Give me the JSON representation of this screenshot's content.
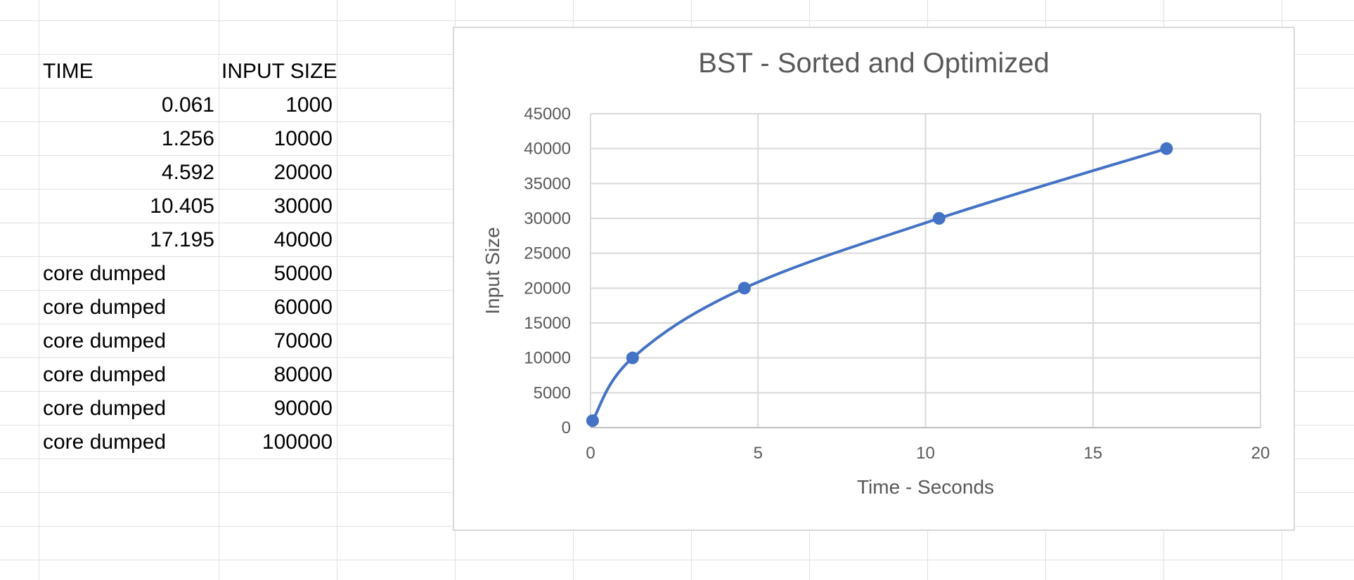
{
  "sheet": {
    "headers": {
      "time": "TIME",
      "input_size": "INPUT SIZE"
    },
    "rows": [
      {
        "time": "0.061",
        "input_size": "1000",
        "time_align": "right"
      },
      {
        "time": "1.256",
        "input_size": "10000",
        "time_align": "right"
      },
      {
        "time": "4.592",
        "input_size": "20000",
        "time_align": "right"
      },
      {
        "time": "10.405",
        "input_size": "30000",
        "time_align": "right"
      },
      {
        "time": "17.195",
        "input_size": "40000",
        "time_align": "right"
      },
      {
        "time": "core dumped",
        "input_size": "50000",
        "time_align": "left"
      },
      {
        "time": "core dumped",
        "input_size": "60000",
        "time_align": "left"
      },
      {
        "time": "core dumped",
        "input_size": "70000",
        "time_align": "left"
      },
      {
        "time": "core dumped",
        "input_size": "80000",
        "time_align": "left"
      },
      {
        "time": "core dumped",
        "input_size": "90000",
        "time_align": "left"
      },
      {
        "time": "core dumped",
        "input_size": "100000",
        "time_align": "left"
      }
    ]
  },
  "chart_data": {
    "type": "scatter",
    "title": "BST - Sorted and Optimized",
    "xlabel": "Time - Seconds",
    "ylabel": "Input Size",
    "xlim": [
      0,
      20
    ],
    "ylim": [
      0,
      45000
    ],
    "xticks": [
      0,
      5,
      10,
      15,
      20
    ],
    "yticks": [
      0,
      5000,
      10000,
      15000,
      20000,
      25000,
      30000,
      35000,
      40000,
      45000
    ],
    "grid": true,
    "smooth_line": true,
    "series": [
      {
        "x": [
          0.061,
          1.256,
          4.592,
          10.405,
          17.195
        ],
        "y": [
          1000,
          10000,
          20000,
          30000,
          40000
        ],
        "color": "#4472c4"
      }
    ]
  }
}
